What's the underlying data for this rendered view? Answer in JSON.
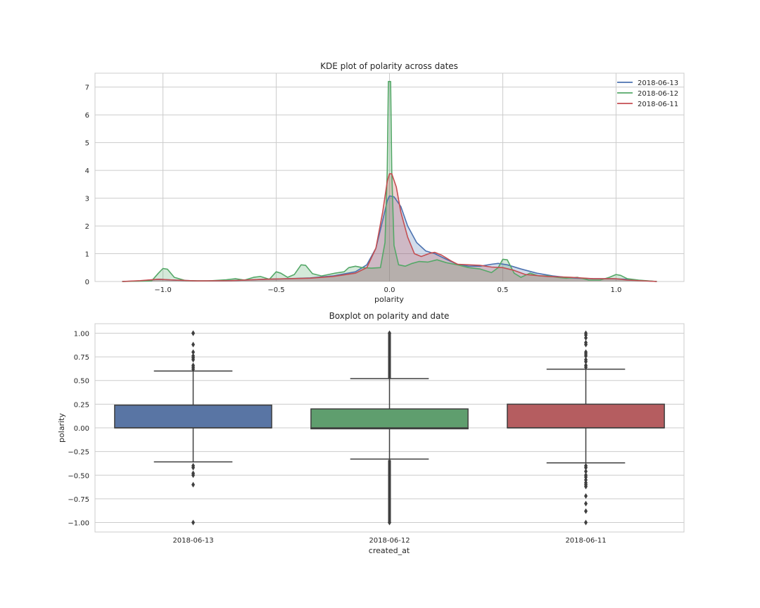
{
  "chart_data": [
    {
      "type": "line",
      "kind": "kde",
      "title": "KDE plot of polarity across dates",
      "xlabel": "polarity",
      "ylabel": "",
      "xlim": [
        -1.3,
        1.3
      ],
      "ylim": [
        0,
        7.5
      ],
      "xticks": [
        -1.0,
        -0.5,
        0.0,
        0.5,
        1.0
      ],
      "xtick_labels": [
        "−1.0",
        "−0.5",
        "0.0",
        "0.5",
        "1.0"
      ],
      "yticks": [
        0,
        1,
        2,
        3,
        4,
        5,
        6,
        7
      ],
      "ytick_labels": [
        "0",
        "1",
        "2",
        "3",
        "4",
        "5",
        "6",
        "7"
      ],
      "grid": true,
      "legend_position": "top-right",
      "series": [
        {
          "name": "2018-06-13",
          "color": "#4c72b0",
          "points": [
            [
              -1.18,
              0.0
            ],
            [
              -1.1,
              0.02
            ],
            [
              -1.02,
              0.08
            ],
            [
              -0.95,
              0.05
            ],
            [
              -0.85,
              0.02
            ],
            [
              -0.7,
              0.03
            ],
            [
              -0.55,
              0.08
            ],
            [
              -0.45,
              0.1
            ],
            [
              -0.35,
              0.13
            ],
            [
              -0.25,
              0.2
            ],
            [
              -0.15,
              0.35
            ],
            [
              -0.1,
              0.6
            ],
            [
              -0.06,
              1.2
            ],
            [
              -0.03,
              2.2
            ],
            [
              -0.01,
              2.9
            ],
            [
              0.0,
              3.08
            ],
            [
              0.02,
              3.05
            ],
            [
              0.05,
              2.7
            ],
            [
              0.08,
              2.0
            ],
            [
              0.12,
              1.4
            ],
            [
              0.16,
              1.1
            ],
            [
              0.2,
              1.0
            ],
            [
              0.25,
              0.8
            ],
            [
              0.3,
              0.62
            ],
            [
              0.35,
              0.55
            ],
            [
              0.4,
              0.55
            ],
            [
              0.45,
              0.62
            ],
            [
              0.48,
              0.65
            ],
            [
              0.52,
              0.6
            ],
            [
              0.58,
              0.45
            ],
            [
              0.65,
              0.3
            ],
            [
              0.72,
              0.2
            ],
            [
              0.8,
              0.13
            ],
            [
              0.9,
              0.1
            ],
            [
              0.98,
              0.1
            ],
            [
              1.05,
              0.08
            ],
            [
              1.1,
              0.04
            ],
            [
              1.18,
              0.0
            ]
          ]
        },
        {
          "name": "2018-06-12",
          "color": "#55a868",
          "points": [
            [
              -1.18,
              0.0
            ],
            [
              -1.05,
              0.02
            ],
            [
              -1.02,
              0.3
            ],
            [
              -1.0,
              0.47
            ],
            [
              -0.98,
              0.44
            ],
            [
              -0.95,
              0.15
            ],
            [
              -0.9,
              0.03
            ],
            [
              -0.8,
              0.02
            ],
            [
              -0.72,
              0.06
            ],
            [
              -0.68,
              0.1
            ],
            [
              -0.64,
              0.05
            ],
            [
              -0.6,
              0.15
            ],
            [
              -0.57,
              0.18
            ],
            [
              -0.53,
              0.08
            ],
            [
              -0.5,
              0.35
            ],
            [
              -0.48,
              0.3
            ],
            [
              -0.45,
              0.15
            ],
            [
              -0.42,
              0.25
            ],
            [
              -0.39,
              0.6
            ],
            [
              -0.37,
              0.58
            ],
            [
              -0.34,
              0.28
            ],
            [
              -0.3,
              0.2
            ],
            [
              -0.27,
              0.25
            ],
            [
              -0.24,
              0.3
            ],
            [
              -0.2,
              0.35
            ],
            [
              -0.18,
              0.5
            ],
            [
              -0.15,
              0.55
            ],
            [
              -0.12,
              0.5
            ],
            [
              -0.08,
              0.48
            ],
            [
              -0.04,
              0.5
            ],
            [
              -0.02,
              1.4
            ],
            [
              -0.01,
              4.0
            ],
            [
              -0.005,
              7.2
            ],
            [
              0.005,
              7.2
            ],
            [
              0.01,
              4.0
            ],
            [
              0.02,
              1.3
            ],
            [
              0.04,
              0.6
            ],
            [
              0.07,
              0.55
            ],
            [
              0.1,
              0.65
            ],
            [
              0.13,
              0.72
            ],
            [
              0.17,
              0.7
            ],
            [
              0.21,
              0.78
            ],
            [
              0.25,
              0.68
            ],
            [
              0.3,
              0.6
            ],
            [
              0.35,
              0.5
            ],
            [
              0.4,
              0.45
            ],
            [
              0.45,
              0.32
            ],
            [
              0.48,
              0.5
            ],
            [
              0.5,
              0.8
            ],
            [
              0.52,
              0.78
            ],
            [
              0.55,
              0.3
            ],
            [
              0.58,
              0.15
            ],
            [
              0.62,
              0.3
            ],
            [
              0.66,
              0.2
            ],
            [
              0.7,
              0.2
            ],
            [
              0.74,
              0.15
            ],
            [
              0.78,
              0.12
            ],
            [
              0.83,
              0.15
            ],
            [
              0.88,
              0.05
            ],
            [
              0.93,
              0.05
            ],
            [
              0.97,
              0.15
            ],
            [
              1.0,
              0.25
            ],
            [
              1.02,
              0.22
            ],
            [
              1.05,
              0.1
            ],
            [
              1.1,
              0.05
            ],
            [
              1.18,
              0.0
            ]
          ]
        },
        {
          "name": "2018-06-11",
          "color": "#c44e52",
          "points": [
            [
              -1.18,
              0.0
            ],
            [
              -1.1,
              0.03
            ],
            [
              -1.02,
              0.08
            ],
            [
              -0.95,
              0.05
            ],
            [
              -0.85,
              0.02
            ],
            [
              -0.7,
              0.03
            ],
            [
              -0.55,
              0.08
            ],
            [
              -0.45,
              0.1
            ],
            [
              -0.35,
              0.12
            ],
            [
              -0.25,
              0.18
            ],
            [
              -0.15,
              0.3
            ],
            [
              -0.1,
              0.5
            ],
            [
              -0.06,
              1.2
            ],
            [
              -0.03,
              2.5
            ],
            [
              -0.01,
              3.6
            ],
            [
              0.0,
              3.88
            ],
            [
              0.01,
              3.88
            ],
            [
              0.03,
              3.4
            ],
            [
              0.05,
              2.5
            ],
            [
              0.08,
              1.6
            ],
            [
              0.11,
              1.0
            ],
            [
              0.14,
              0.9
            ],
            [
              0.18,
              1.02
            ],
            [
              0.2,
              1.05
            ],
            [
              0.23,
              0.95
            ],
            [
              0.27,
              0.75
            ],
            [
              0.3,
              0.62
            ],
            [
              0.35,
              0.6
            ],
            [
              0.4,
              0.58
            ],
            [
              0.45,
              0.52
            ],
            [
              0.5,
              0.5
            ],
            [
              0.55,
              0.4
            ],
            [
              0.6,
              0.25
            ],
            [
              0.7,
              0.18
            ],
            [
              0.8,
              0.15
            ],
            [
              0.9,
              0.1
            ],
            [
              1.0,
              0.1
            ],
            [
              1.05,
              0.05
            ],
            [
              1.18,
              0.0
            ]
          ]
        }
      ]
    },
    {
      "type": "box",
      "title": "Boxplot on polarity and date",
      "xlabel": "created_at",
      "ylabel": "polarity",
      "ylim": [
        -1.1,
        1.1
      ],
      "yticks": [
        -1.0,
        -0.75,
        -0.5,
        -0.25,
        0.0,
        0.25,
        0.5,
        0.75,
        1.0
      ],
      "ytick_labels": [
        "−1.00",
        "−0.75",
        "−0.50",
        "−0.25",
        "0.00",
        "0.25",
        "0.50",
        "0.75",
        "1.00"
      ],
      "grid": true,
      "categories": [
        "2018-06-13",
        "2018-06-12",
        "2018-06-11"
      ],
      "boxes": [
        {
          "name": "2018-06-13",
          "color": "#5975a4",
          "q1": 0.0,
          "median": 0.0,
          "q3": 0.24,
          "whisker_low": -0.36,
          "whisker_high": 0.6,
          "outliers": [
            1.0,
            1.0,
            0.88,
            0.8,
            0.76,
            0.74,
            0.72,
            0.66,
            0.64,
            0.62,
            -0.4,
            -0.42,
            -0.48,
            -0.5,
            -0.6,
            -1.0
          ]
        },
        {
          "name": "2018-06-12",
          "color": "#5f9e6e",
          "q1": -0.01,
          "median": 0.0,
          "q3": 0.2,
          "whisker_low": -0.33,
          "whisker_high": 0.52,
          "outliers": [
            1.0,
            -1.0
          ],
          "outlier_dense_ranges": [
            [
              0.53,
              1.0
            ],
            [
              -1.0,
              -0.35
            ]
          ]
        },
        {
          "name": "2018-06-11",
          "color": "#b55d60",
          "q1": 0.0,
          "median": 0.0,
          "q3": 0.25,
          "whisker_low": -0.37,
          "whisker_high": 0.62,
          "outliers": [
            1.0,
            0.98,
            0.95,
            0.9,
            0.88,
            0.8,
            0.78,
            0.76,
            0.72,
            0.7,
            0.66,
            0.64,
            -0.4,
            -0.42,
            -0.46,
            -0.5,
            -0.52,
            -0.55,
            -0.58,
            -0.6,
            -0.62,
            -0.72,
            -0.8,
            -0.88,
            -1.0
          ]
        }
      ]
    }
  ]
}
